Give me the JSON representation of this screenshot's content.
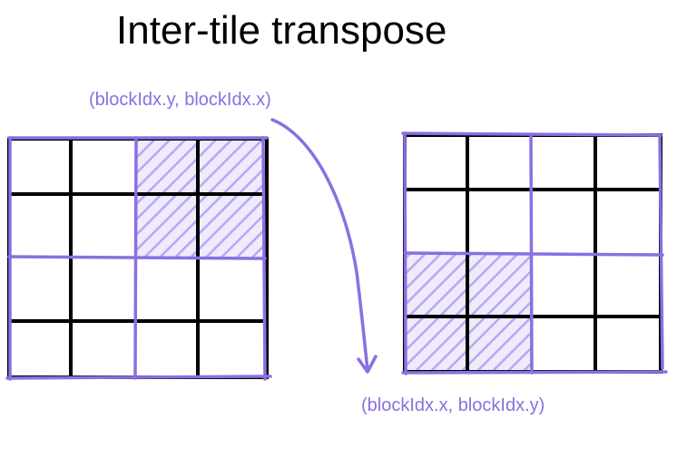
{
  "title": "Inter-tile transpose",
  "source_label": "(blockIdx.y, blockIdx.x)",
  "target_label": "(blockIdx.x, blockIdx.y)",
  "colors": {
    "accent": "#8a70e0",
    "hatch": "#b8a8f0",
    "hatch_bg": "#efeafc",
    "grid": "#000000",
    "text": "#000000"
  },
  "grids": [
    {
      "name": "source-grid",
      "rows": 4,
      "cols": 4,
      "highlighted_tile": {
        "row": 0,
        "col": 1
      }
    },
    {
      "name": "target-grid",
      "rows": 4,
      "cols": 4,
      "highlighted_tile": {
        "row": 1,
        "col": 0
      }
    }
  ]
}
